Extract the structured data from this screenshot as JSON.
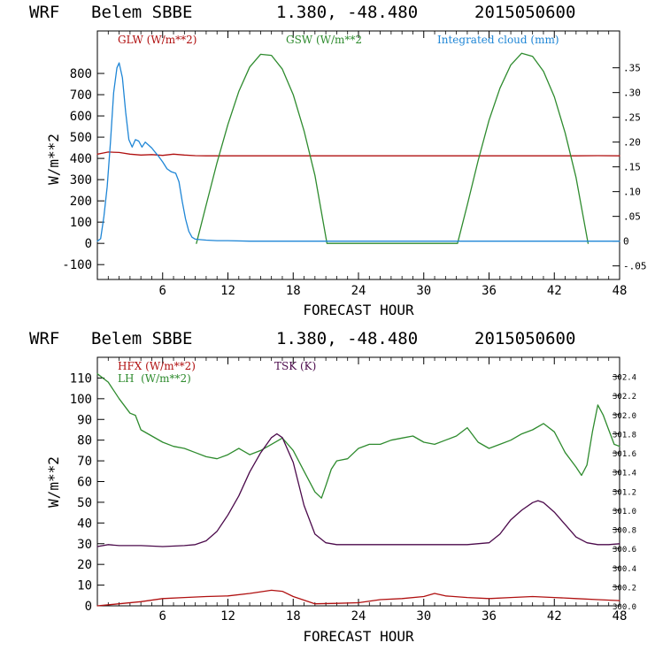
{
  "chart_data": [
    {
      "type": "line",
      "header": {
        "model": "WRF",
        "station": "Belem SBBE",
        "coords": "1.380, -48.480",
        "run": "2015050600"
      },
      "xlabel": "FORECAST HOUR",
      "ylabel": "W/m**2",
      "xlim": [
        0,
        48
      ],
      "ylim": [
        -170,
        1000
      ],
      "x_ticks": [
        6,
        12,
        18,
        24,
        30,
        36,
        42,
        48
      ],
      "y_ticks": [
        -100,
        0,
        100,
        200,
        300,
        400,
        500,
        600,
        700,
        800
      ],
      "y2_ticks": [
        -0.05,
        0,
        0.05,
        0.1,
        0.15,
        0.2,
        0.25,
        0.3,
        0.35
      ],
      "y2_tick_labels": [
        "-.05",
        "0",
        ".05",
        ".10",
        ".15",
        ".20",
        ".25",
        ".30",
        ".35"
      ],
      "y2lim": [
        -0.0774,
        0.4244
      ],
      "series": [
        {
          "name": "GLW (W/m**2)",
          "color": "#b01010",
          "axis": "left",
          "x": [
            0,
            0.5,
            1,
            2,
            3,
            4,
            5,
            6,
            7,
            8,
            9,
            10,
            12,
            14,
            16,
            18,
            20,
            22,
            24,
            26,
            28,
            30,
            32,
            34,
            36,
            38,
            40,
            42,
            44,
            46,
            48
          ],
          "y": [
            420,
            425,
            430,
            428,
            420,
            416,
            418,
            414,
            420,
            416,
            413,
            412,
            412,
            412,
            412,
            412,
            412,
            412,
            412,
            412,
            412,
            412,
            412,
            412,
            412,
            412,
            412,
            412,
            412,
            413,
            412
          ]
        },
        {
          "name": "GSW (W/m**2",
          "color": "#2e8b2e",
          "axis": "left",
          "x": [
            9.1,
            10,
            11,
            12,
            13,
            14,
            15,
            16,
            17,
            18,
            19,
            20,
            21.1,
            33.1,
            34,
            35,
            36,
            37,
            38,
            39,
            40,
            41,
            42,
            43,
            44,
            45.1
          ],
          "y": [
            0,
            180,
            380,
            560,
            715,
            830,
            890,
            885,
            820,
            700,
            530,
            320,
            0,
            0,
            180,
            390,
            580,
            730,
            840,
            895,
            880,
            810,
            690,
            520,
            310,
            0
          ]
        },
        {
          "name": "Integrated cloud (mm)",
          "color": "#1f86d6",
          "axis": "right",
          "x": [
            0,
            0.3,
            0.6,
            0.9,
            1.2,
            1.5,
            1.8,
            2.0,
            2.3,
            2.6,
            2.9,
            3.2,
            3.5,
            3.8,
            4.1,
            4.4,
            4.7,
            5.0,
            5.3,
            5.6,
            6.0,
            6.4,
            6.8,
            7.2,
            7.5,
            7.8,
            8.1,
            8.4,
            8.7,
            9.0,
            9.5,
            10,
            11,
            12,
            14,
            16,
            20,
            30,
            40,
            48
          ],
          "y": [
            0,
            0.005,
            0.05,
            0.11,
            0.2,
            0.3,
            0.35,
            0.36,
            0.33,
            0.26,
            0.205,
            0.19,
            0.205,
            0.202,
            0.19,
            0.2,
            0.194,
            0.188,
            0.18,
            0.172,
            0.16,
            0.146,
            0.14,
            0.137,
            0.12,
            0.08,
            0.045,
            0.02,
            0.008,
            0.004,
            0.003,
            0.002,
            0.001,
            0.001,
            0,
            0,
            0,
            0,
            0,
            0
          ]
        }
      ]
    },
    {
      "type": "line",
      "header": {
        "model": "WRF",
        "station": "Belem SBBE",
        "coords": "1.380, -48.480",
        "run": "2015050600"
      },
      "xlabel": "FORECAST HOUR",
      "ylabel": "W/m**2",
      "xlim": [
        0,
        48
      ],
      "ylim": [
        0,
        120
      ],
      "x_ticks": [
        6,
        12,
        18,
        24,
        30,
        36,
        42,
        48
      ],
      "y_ticks": [
        0,
        10,
        20,
        30,
        40,
        50,
        60,
        70,
        80,
        90,
        100,
        110
      ],
      "y2_ticks": [
        300.0,
        300.2,
        300.4,
        300.6,
        300.8,
        301.0,
        301.2,
        301.4,
        301.6,
        301.8,
        302.0,
        302.2,
        302.4
      ],
      "y2_tick_labels": [
        "300.0",
        "300.2",
        "300.4",
        "300.6",
        "300.8",
        "301.0",
        "301.2",
        "301.4",
        "301.6",
        "301.8",
        "302.0",
        "302.2",
        "302.4"
      ],
      "y2lim": [
        300.0,
        302.6
      ],
      "series": [
        {
          "name": "HFX (W/m**2)",
          "color": "#b01010",
          "axis": "left",
          "x": [
            0,
            2,
            4,
            6,
            8,
            10,
            12,
            14,
            16,
            17,
            18,
            20,
            22,
            24,
            26,
            28,
            30,
            31,
            32,
            34,
            36,
            38,
            40,
            42,
            44,
            46,
            48
          ],
          "y": [
            0,
            1,
            2,
            3.5,
            4,
            4.5,
            4.8,
            6,
            7.5,
            7,
            4.5,
            1,
            1.2,
            1.5,
            3,
            3.5,
            4.5,
            6,
            4.8,
            4,
            3.5,
            4,
            4.5,
            4,
            3.5,
            3,
            2.5
          ]
        },
        {
          "name": "LH  (W/m**2)",
          "color": "#2e8b2e",
          "axis": "left",
          "x": [
            0,
            1,
            2,
            3,
            3.5,
            4,
            5,
            6,
            7,
            8,
            9,
            10,
            11,
            12,
            13,
            14,
            15,
            16,
            17,
            18,
            19,
            20,
            20.6,
            21,
            21.5,
            22,
            23,
            24,
            25,
            26,
            27,
            28,
            29,
            30,
            31,
            32,
            33,
            34,
            35,
            36,
            37,
            38,
            39,
            40,
            41,
            42,
            43,
            44,
            44.5,
            45,
            45.5,
            46,
            46.5,
            47,
            47.5,
            48
          ],
          "y": [
            112,
            108,
            100,
            93,
            92,
            85,
            82,
            79,
            77,
            76,
            74,
            72,
            71,
            73,
            76,
            73,
            75,
            78,
            81,
            75,
            65,
            55,
            52,
            58,
            66,
            70,
            71,
            76,
            78,
            78,
            80,
            81,
            82,
            79,
            78,
            80,
            82,
            86,
            79,
            76,
            78,
            80,
            83,
            85,
            88,
            84,
            74,
            67,
            63,
            68,
            84,
            97,
            92,
            85,
            78,
            77
          ]
        },
        {
          "name": "TSK (K)",
          "color": "#4b0a4b",
          "axis": "right",
          "x": [
            0,
            1,
            2,
            4,
            6,
            8,
            9,
            10,
            11,
            12,
            13,
            14,
            15,
            16,
            16.5,
            17,
            18,
            19,
            20,
            21,
            22,
            24,
            26,
            28,
            30,
            32,
            34,
            36,
            37,
            38,
            39,
            40,
            40.5,
            41,
            42,
            43,
            44,
            45,
            46,
            47,
            48
          ],
          "y": [
            300.62,
            300.64,
            300.63,
            300.63,
            300.62,
            300.63,
            300.64,
            300.68,
            300.78,
            300.95,
            301.15,
            301.4,
            301.6,
            301.76,
            301.8,
            301.76,
            301.5,
            301.05,
            300.75,
            300.66,
            300.64,
            300.64,
            300.64,
            300.64,
            300.64,
            300.64,
            300.64,
            300.66,
            300.75,
            300.9,
            301.0,
            301.08,
            301.1,
            301.08,
            300.98,
            300.85,
            300.72,
            300.66,
            300.64,
            300.64,
            300.65
          ]
        }
      ]
    }
  ]
}
